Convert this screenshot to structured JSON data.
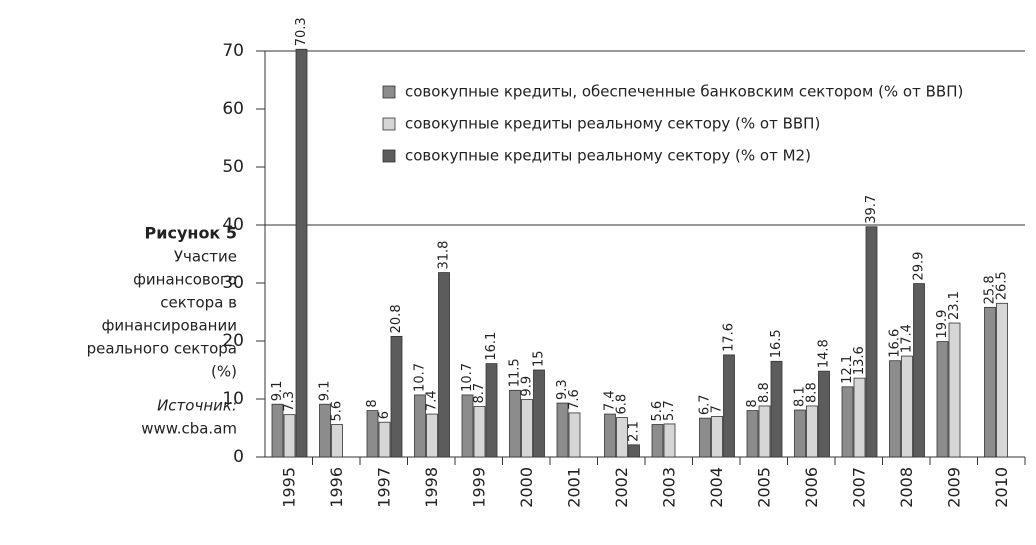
{
  "chart_data": {
    "type": "bar",
    "caption": {
      "figure": "Рисунок 5",
      "lines": [
        "Участие",
        "финансового",
        "сектора в",
        "финансировании",
        "реального сектора",
        "(%)"
      ],
      "source_label": "Источник:",
      "source": "www.cba.am"
    },
    "categories": [
      "1995",
      "1996",
      "1997",
      "1998",
      "1999",
      "2000",
      "2001",
      "2002",
      "2003",
      "2004",
      "2005",
      "2006",
      "2007",
      "2008",
      "2009",
      "2010"
    ],
    "series": [
      {
        "name": "совокупные кредиты, обеспеченные банковским сектором (% от ВВП)",
        "color": "#8c8c8c",
        "values": [
          9.1,
          9.1,
          8,
          10.7,
          10.7,
          11.5,
          9.3,
          7.4,
          5.6,
          6.7,
          8,
          8.1,
          12.1,
          16.6,
          19.9,
          25.8
        ]
      },
      {
        "name": "совокупные кредиты реальному сектору (% от ВВП)",
        "color": "#d6d6d6",
        "values": [
          7.3,
          5.6,
          6,
          7.4,
          8.7,
          9.9,
          7.6,
          6.8,
          5.7,
          7,
          8.8,
          8.8,
          13.6,
          17.4,
          23.1,
          26.5
        ]
      },
      {
        "name": "совокупные кредиты реальному сектору (% от М2)",
        "color": "#5c5c5c",
        "values": [
          70.3,
          null,
          20.8,
          31.8,
          16.1,
          15,
          null,
          2.1,
          null,
          17.6,
          16.5,
          14.8,
          39.7,
          29.9,
          null,
          null
        ]
      }
    ],
    "ylim": [
      0,
      72
    ],
    "yticks": [
      0,
      10,
      20,
      30,
      40,
      50,
      60,
      70
    ],
    "gridlines": [
      40,
      70
    ],
    "legend": "top-right"
  }
}
